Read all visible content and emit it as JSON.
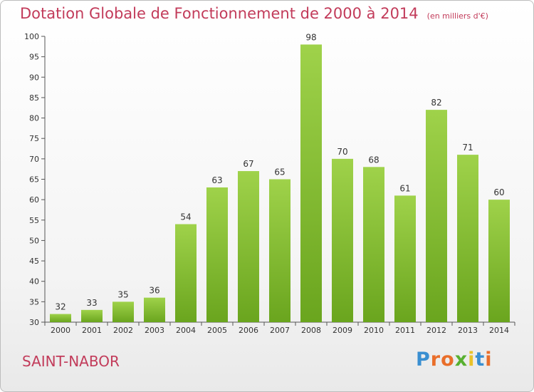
{
  "chart_data": {
    "type": "bar",
    "title": "Dotation Globale de Fonctionnement de 2000 à 2014",
    "subtitle": "(en milliers d'€)",
    "categories": [
      "2000",
      "2001",
      "2002",
      "2003",
      "2004",
      "2005",
      "2006",
      "2007",
      "2008",
      "2009",
      "2010",
      "2011",
      "2012",
      "2013",
      "2014"
    ],
    "values": [
      32,
      33,
      35,
      36,
      54,
      63,
      67,
      65,
      98,
      70,
      68,
      61,
      82,
      71,
      60
    ],
    "ylim": [
      30,
      100
    ],
    "yticks": [
      30,
      35,
      40,
      45,
      50,
      55,
      60,
      65,
      70,
      75,
      80,
      85,
      90,
      95,
      100
    ],
    "grid": false,
    "bar_color": "#8cc43c"
  },
  "footer": {
    "commune": "SAINT-NABOR",
    "logo_letters": [
      {
        "ch": "P",
        "color": "#3a8fd1"
      },
      {
        "ch": "r",
        "color": "#e96e2a"
      },
      {
        "ch": "o",
        "color": "#e96e2a"
      },
      {
        "ch": "x",
        "color": "#58b030"
      },
      {
        "ch": "i",
        "color": "#e9c22a"
      },
      {
        "ch": "t",
        "color": "#3a8fd1"
      },
      {
        "ch": "i",
        "color": "#e96e2a"
      }
    ]
  }
}
